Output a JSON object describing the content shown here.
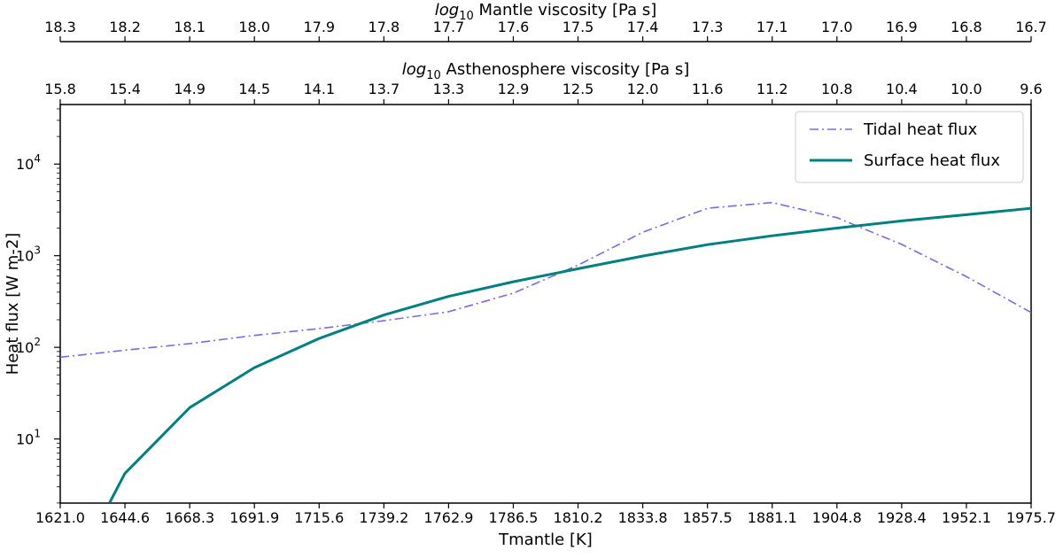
{
  "chart_data": {
    "type": "line",
    "xlabel": "Tmantle [K]",
    "ylabel": "Heat flux [W m-2]",
    "yscale": "log",
    "xlim": [
      1621.0,
      1975.7
    ],
    "ylim_exponent": [
      0.3,
      4.65
    ],
    "grid": false,
    "legend_position": "top-right",
    "x_ticks": [
      "1621.0",
      "1644.6",
      "1668.3",
      "1691.9",
      "1715.6",
      "1739.2",
      "1762.9",
      "1786.5",
      "1810.2",
      "1833.8",
      "1857.5",
      "1881.1",
      "1904.8",
      "1928.4",
      "1952.1",
      "1975.7"
    ],
    "y_ticks": [
      {
        "value": 10,
        "base": "10",
        "exp": "1"
      },
      {
        "value": 100,
        "base": "10",
        "exp": "2"
      },
      {
        "value": 1000,
        "base": "10",
        "exp": "3"
      },
      {
        "value": 10000,
        "base": "10",
        "exp": "4"
      }
    ],
    "top_axis_mantle": {
      "label_prefix": "log",
      "label_sub": "10",
      "label_rest": " Mantle viscosity [Pa s]",
      "ticks": [
        "18.3",
        "18.2",
        "18.1",
        "18.0",
        "17.9",
        "17.8",
        "17.7",
        "17.6",
        "17.5",
        "17.4",
        "17.3",
        "17.1",
        "17.0",
        "16.9",
        "16.8",
        "16.7"
      ]
    },
    "top_axis_asthenosphere": {
      "label_prefix": "log",
      "label_sub": "10",
      "label_rest": " Asthenosphere viscosity [Pa s]",
      "ticks": [
        "15.8",
        "15.4",
        "14.9",
        "14.5",
        "14.1",
        "13.7",
        "13.3",
        "12.9",
        "12.5",
        "12.0",
        "11.6",
        "11.2",
        "10.8",
        "10.4",
        "10.0",
        "9.6"
      ]
    },
    "x": [
      1621.0,
      1644.6,
      1668.3,
      1691.9,
      1715.6,
      1739.2,
      1762.9,
      1786.5,
      1810.2,
      1833.8,
      1857.5,
      1881.1,
      1904.8,
      1928.4,
      1952.1,
      1975.7
    ],
    "series": [
      {
        "name": "Tidal heat flux",
        "color": "#7b68ee",
        "style": "dashdot",
        "values": [
          78,
          93,
          110,
          135,
          160,
          195,
          245,
          390,
          790,
          1800,
          3300,
          3800,
          2600,
          1330,
          590,
          240
        ]
      },
      {
        "name": "Surface heat flux",
        "color": "#008080",
        "style": "solid",
        "x": [
          1639.0,
          1644.6,
          1668.3,
          1691.9,
          1715.6,
          1739.2,
          1762.9,
          1786.5,
          1810.2,
          1833.8,
          1857.5,
          1881.1,
          1904.8,
          1928.4,
          1952.1,
          1975.7
        ],
        "values": [
          2,
          4.2,
          22,
          60,
          125,
          225,
          360,
          520,
          720,
          990,
          1320,
          1650,
          2000,
          2400,
          2800,
          3300
        ]
      }
    ]
  }
}
